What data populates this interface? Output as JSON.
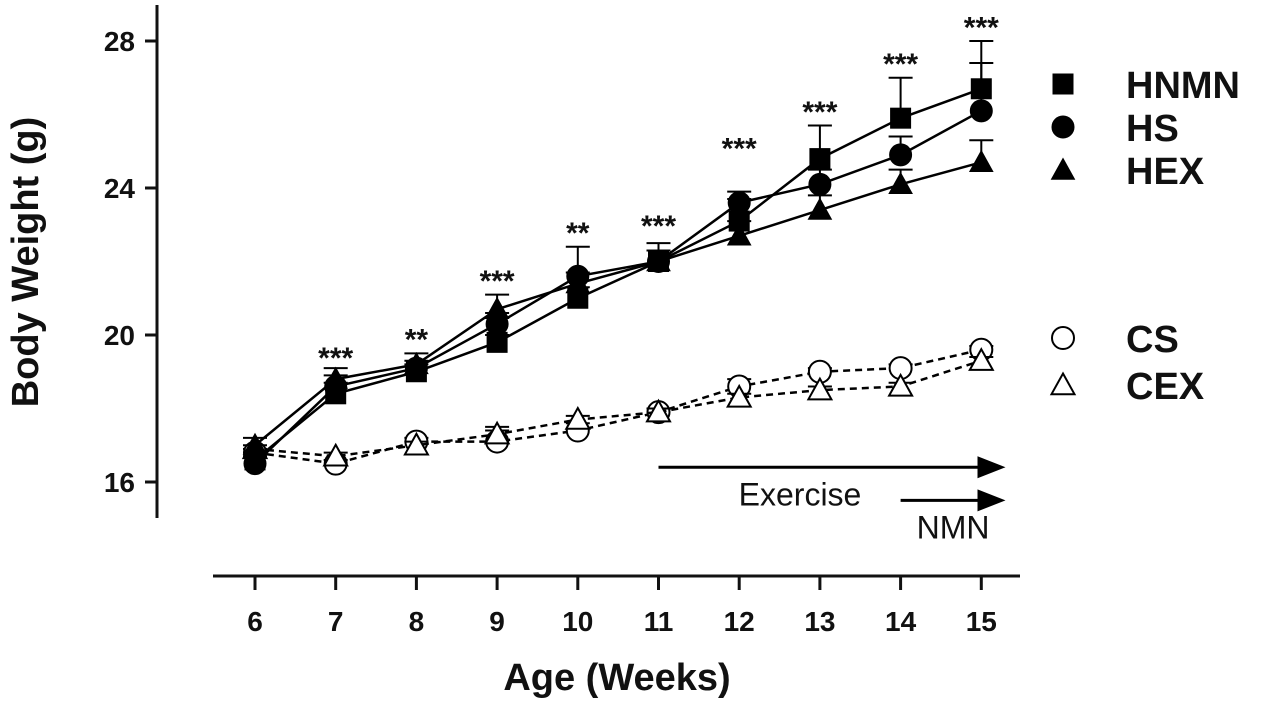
{
  "chart_data": {
    "type": "line",
    "title": "",
    "xlabel": "Age (Weeks)",
    "ylabel": "Body Weight (g)",
    "x": [
      6,
      7,
      8,
      9,
      10,
      11,
      12,
      13,
      14,
      15
    ],
    "xlim": [
      6,
      15
    ],
    "ylim": [
      15,
      29
    ],
    "yticks": [
      16,
      20,
      24,
      28
    ],
    "grid": false,
    "legend_position": "right",
    "series": [
      {
        "name": "HNMN",
        "marker": "square",
        "fill": "filled",
        "line": "solid",
        "values": [
          16.6,
          18.4,
          19.0,
          19.8,
          21.0,
          22.0,
          23.1,
          24.8,
          25.9,
          26.7
        ],
        "error": [
          0.2,
          0.3,
          0.2,
          0.2,
          0.3,
          0.3,
          0.6,
          0.9,
          1.1,
          1.3
        ]
      },
      {
        "name": "HS",
        "marker": "circle",
        "fill": "filled",
        "line": "solid",
        "values": [
          16.5,
          18.6,
          19.1,
          20.3,
          21.6,
          22.0,
          23.6,
          24.1,
          24.9,
          26.1
        ],
        "error": [
          0.2,
          0.3,
          0.2,
          0.3,
          0.8,
          0.5,
          0.3,
          0.4,
          0.5,
          1.3
        ]
      },
      {
        "name": "HEX",
        "marker": "triangle",
        "fill": "filled",
        "line": "solid",
        "values": [
          17.0,
          18.8,
          19.2,
          20.7,
          21.4,
          22.0,
          22.7,
          23.4,
          24.1,
          24.7
        ],
        "error": [
          0.2,
          0.3,
          0.3,
          0.4,
          0.3,
          0.3,
          0.4,
          0.4,
          0.4,
          0.6
        ]
      },
      {
        "name": "CS",
        "marker": "circle",
        "fill": "open",
        "line": "dashed",
        "values": [
          16.8,
          16.5,
          17.1,
          17.1,
          17.4,
          17.9,
          18.6,
          19.0,
          19.1,
          19.6
        ],
        "error": [
          0.1,
          0.1,
          0.1,
          0.4,
          0.2,
          0.1,
          0.2,
          0.1,
          0.1,
          0.1
        ]
      },
      {
        "name": "CEX",
        "marker": "triangle",
        "fill": "open",
        "line": "dashed",
        "values": [
          16.9,
          16.7,
          17.0,
          17.3,
          17.7,
          17.9,
          18.3,
          18.5,
          18.6,
          19.3
        ],
        "error": [
          0.1,
          0.1,
          0.1,
          0.1,
          0.1,
          0.1,
          0.1,
          0.1,
          0.1,
          0.1
        ]
      }
    ],
    "significance": [
      {
        "x": 7,
        "label": "***",
        "y": 19.1
      },
      {
        "x": 8,
        "label": "**",
        "y": 19.6
      },
      {
        "x": 9,
        "label": "***",
        "y": 21.2
      },
      {
        "x": 10,
        "label": "**",
        "y": 22.5
      },
      {
        "x": 11,
        "label": "***",
        "y": 22.7
      },
      {
        "x": 12,
        "label": "***",
        "y": 24.8
      },
      {
        "x": 13,
        "label": "***",
        "y": 25.8
      },
      {
        "x": 14,
        "label": "***",
        "y": 27.1
      },
      {
        "x": 15,
        "label": "***",
        "y": 28.1
      }
    ],
    "annotations": [
      {
        "label": "Exercise",
        "start_x": 11,
        "end_x": 15.3,
        "y": 16.4
      },
      {
        "label": "NMN",
        "start_x": 14,
        "end_x": 15.3,
        "y": 15.5
      }
    ]
  }
}
